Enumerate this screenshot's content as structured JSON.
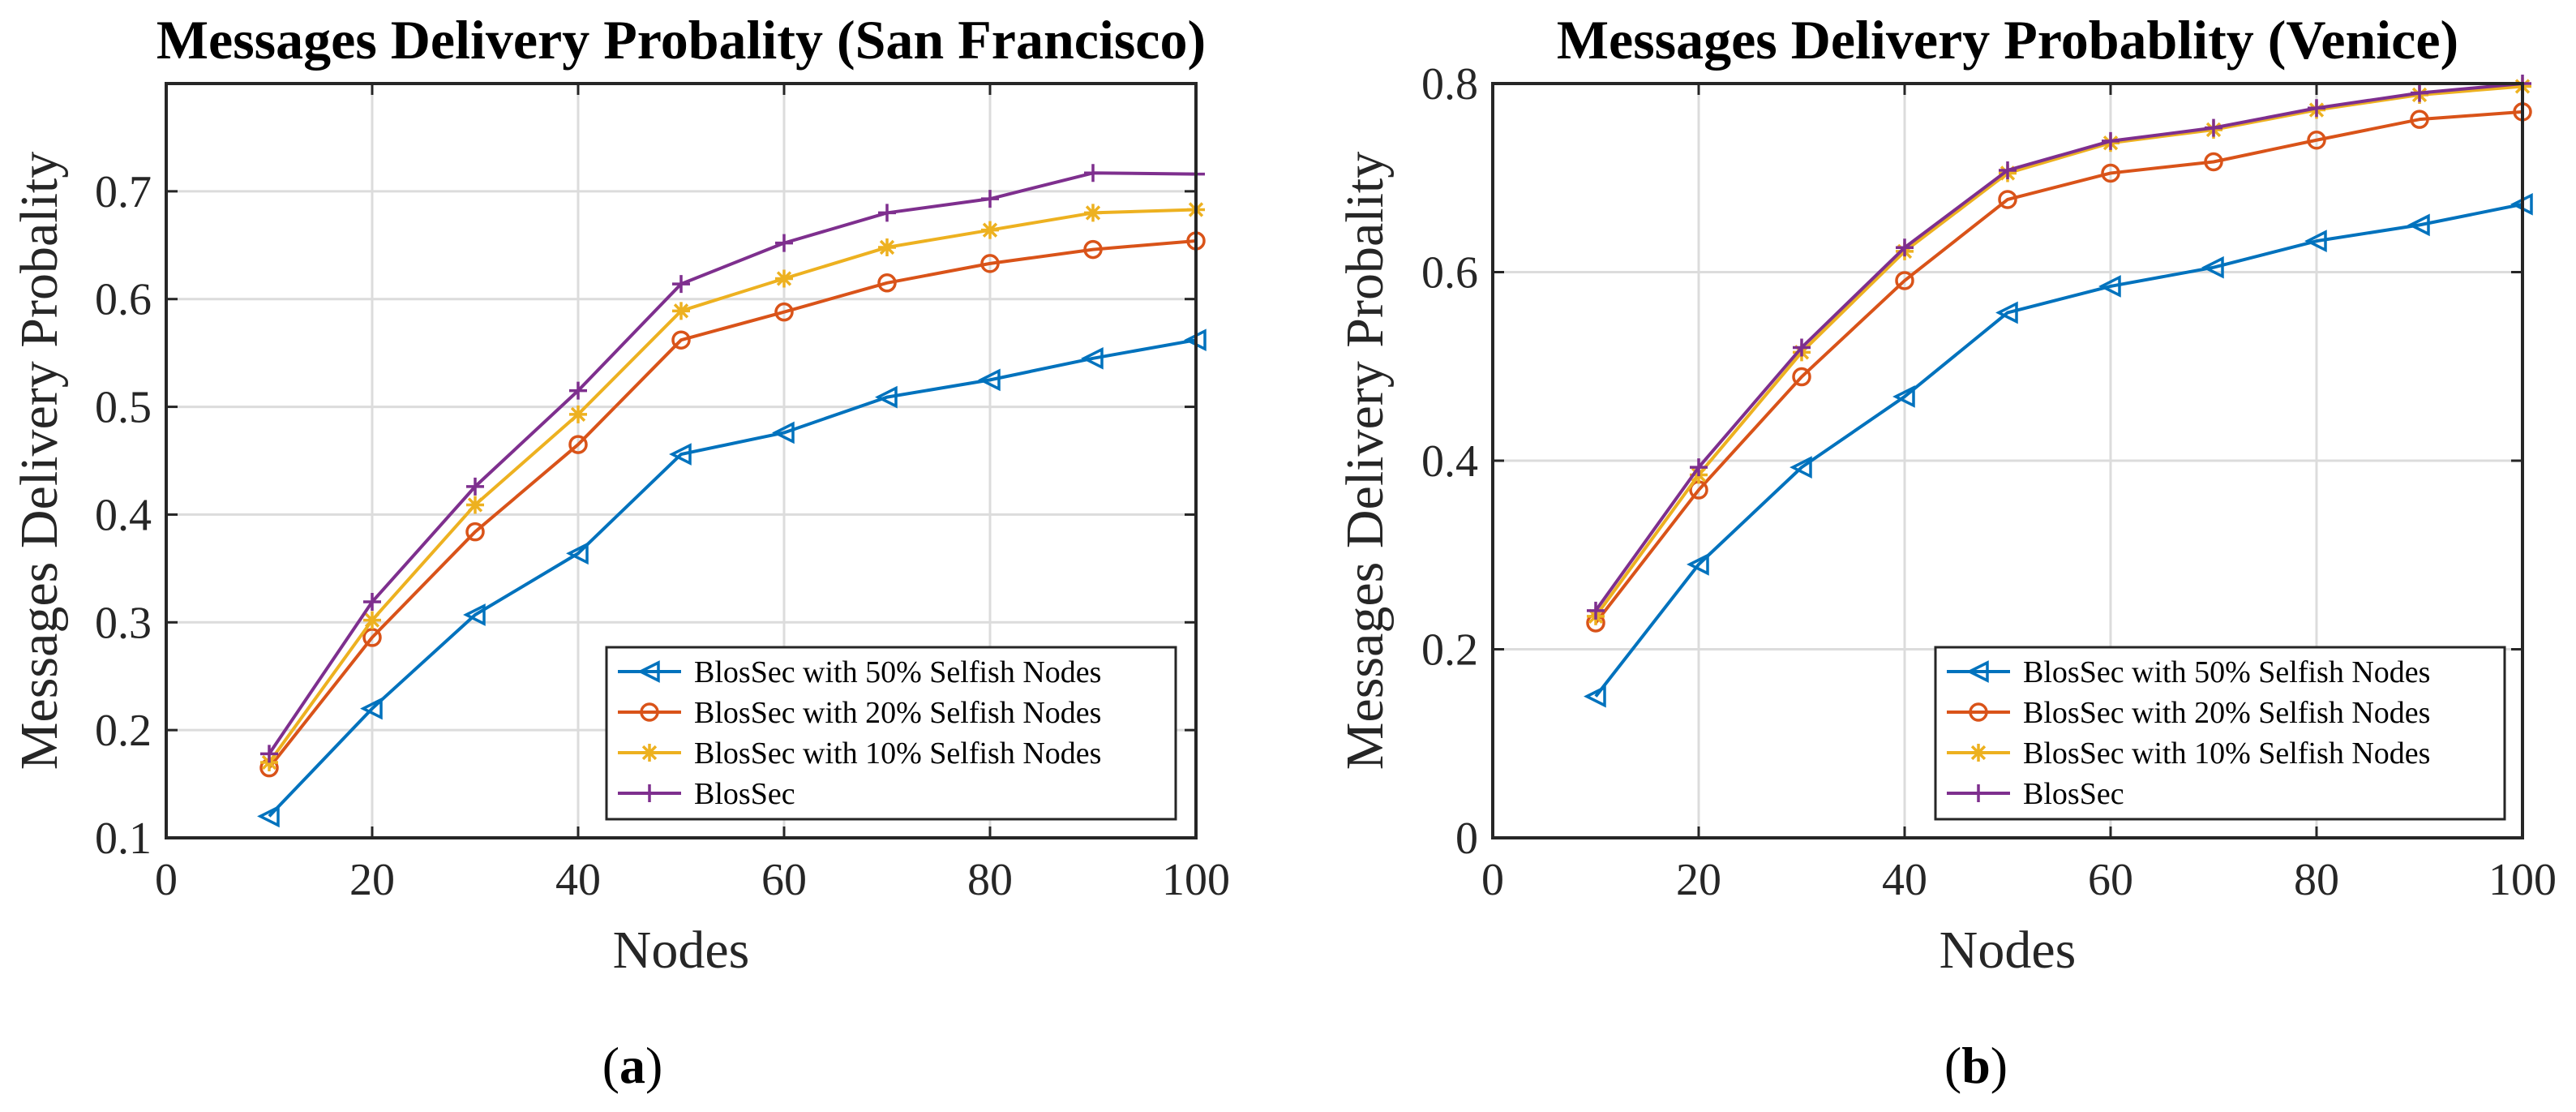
{
  "chart_data": [
    {
      "type": "line",
      "panel_label": "a",
      "title": "Messages Delivery Probality (San Francisco)",
      "xlabel": "Nodes",
      "ylabel": "Messages Delivery Probality",
      "xlim": [
        0,
        100
      ],
      "ylim": [
        0.1,
        0.8
      ],
      "xticks": [
        0,
        20,
        40,
        60,
        80,
        100
      ],
      "xtick_labels": [
        "0",
        "20",
        "40",
        "60",
        "80",
        "100"
      ],
      "yticks": [
        0.1,
        0.2,
        0.3,
        0.4,
        0.5,
        0.6,
        0.7
      ],
      "ytick_labels": [
        "0.1",
        "0.2",
        "0.3",
        "0.4",
        "0.5",
        "0.6",
        "0.7"
      ],
      "grid": true,
      "legend_position": "bottom-right",
      "x": [
        10,
        20,
        30,
        40,
        50,
        60,
        70,
        80,
        90,
        100
      ],
      "series": [
        {
          "name": "BlosSec with 50% Selfish Nodes",
          "color": "#0072BD",
          "marker": "triangle-left",
          "values": [
            0.12,
            0.22,
            0.307,
            0.364,
            0.456,
            0.476,
            0.509,
            0.525,
            0.545,
            0.562
          ]
        },
        {
          "name": "BlosSec with 20% Selfish Nodes",
          "color": "#D95319",
          "marker": "circle",
          "values": [
            0.165,
            0.286,
            0.384,
            0.465,
            0.562,
            0.588,
            0.615,
            0.633,
            0.646,
            0.654
          ]
        },
        {
          "name": "BlosSec with 10% Selfish Nodes",
          "color": "#EDB120",
          "marker": "asterisk",
          "values": [
            0.17,
            0.302,
            0.409,
            0.493,
            0.589,
            0.619,
            0.648,
            0.664,
            0.68,
            0.683
          ]
        },
        {
          "name": "BlosSec",
          "color": "#7E2F8E",
          "marker": "plus",
          "values": [
            0.178,
            0.319,
            0.426,
            0.515,
            0.614,
            0.652,
            0.68,
            0.693,
            0.717,
            0.716
          ]
        }
      ]
    },
    {
      "type": "line",
      "panel_label": "b",
      "title": "Messages Delivery Probablity (Venice)",
      "xlabel": "Nodes",
      "ylabel": "Messages Delivery Probality",
      "xlim": [
        0,
        100
      ],
      "ylim": [
        0,
        0.8
      ],
      "xticks": [
        0,
        20,
        40,
        60,
        80,
        100
      ],
      "xtick_labels": [
        "0",
        "20",
        "40",
        "60",
        "80",
        "100"
      ],
      "yticks": [
        0,
        0.2,
        0.4,
        0.6,
        0.8
      ],
      "ytick_labels": [
        "0",
        "0.2",
        "0.4",
        "0.6",
        "0.8"
      ],
      "grid": true,
      "legend_position": "bottom-right",
      "x": [
        10,
        20,
        30,
        40,
        50,
        60,
        70,
        80,
        90,
        100
      ],
      "series": [
        {
          "name": "BlosSec with 50% Selfish Nodes",
          "color": "#0072BD",
          "marker": "triangle-left",
          "values": [
            0.15,
            0.29,
            0.393,
            0.468,
            0.557,
            0.585,
            0.605,
            0.633,
            0.65,
            0.672
          ]
        },
        {
          "name": "BlosSec with 20% Selfish Nodes",
          "color": "#D95319",
          "marker": "circle",
          "values": [
            0.228,
            0.369,
            0.489,
            0.591,
            0.677,
            0.705,
            0.717,
            0.74,
            0.762,
            0.77
          ]
        },
        {
          "name": "BlosSec with 10% Selfish Nodes",
          "color": "#EDB120",
          "marker": "asterisk",
          "values": [
            0.235,
            0.385,
            0.515,
            0.622,
            0.705,
            0.737,
            0.751,
            0.772,
            0.788,
            0.797
          ]
        },
        {
          "name": "BlosSec",
          "color": "#7E2F8E",
          "marker": "plus",
          "values": [
            0.241,
            0.393,
            0.52,
            0.626,
            0.708,
            0.739,
            0.753,
            0.774,
            0.79,
            0.8
          ]
        }
      ]
    }
  ]
}
